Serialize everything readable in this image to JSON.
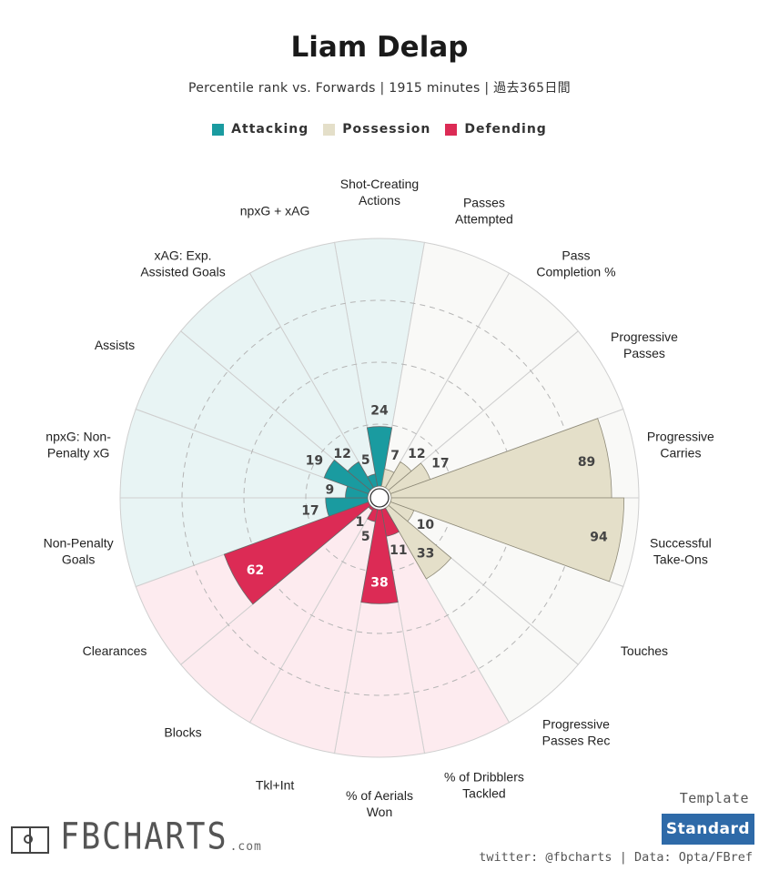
{
  "title": "Liam Delap",
  "subtitle": "Percentile rank vs. Forwards | 1915 minutes | 過去365日間",
  "legend": [
    {
      "label": "Attacking",
      "color": "#1a9ba0"
    },
    {
      "label": "Possession",
      "color": "#e4dfc9"
    },
    {
      "label": "Defending",
      "color": "#dc2b55"
    }
  ],
  "colors": {
    "attacking_bg": "#e8f4f4",
    "possession_bg": "#f9f9f7",
    "defending_bg": "#fdebef",
    "attacking_bar": "#1a9ba0",
    "possession_bar": "#e4dfc9",
    "defending_bar": "#dc2b55",
    "template_button": "#2e6aa8"
  },
  "chart_data": {
    "type": "polar-bar",
    "title": "Liam Delap",
    "value_range": [
      0,
      100
    ],
    "gridline_values": [
      25,
      50,
      75
    ],
    "metrics": [
      {
        "label": "Shot-Creating\nActions",
        "category": "Attacking",
        "value": 24
      },
      {
        "label": "Passes\nAttempted",
        "category": "Possession",
        "value": 7
      },
      {
        "label": "Pass\nCompletion %",
        "category": "Possession",
        "value": 12
      },
      {
        "label": "Progressive\nPasses",
        "category": "Possession",
        "value": 17
      },
      {
        "label": "Progressive\nCarries",
        "category": "Possession",
        "value": 89
      },
      {
        "label": "Successful\nTake-Ons",
        "category": "Possession",
        "value": 94
      },
      {
        "label": "Touches",
        "category": "Possession",
        "value": 10
      },
      {
        "label": "Progressive\nPasses Rec",
        "category": "Possession",
        "value": 33
      },
      {
        "label": "% of Dribblers\nTackled",
        "category": "Defending",
        "value": 11
      },
      {
        "label": "% of Aerials\nWon",
        "category": "Defending",
        "value": 38
      },
      {
        "label": "Tkl+Int",
        "category": "Defending",
        "value": 5
      },
      {
        "label": "Blocks",
        "category": "Defending",
        "value": 1
      },
      {
        "label": "Clearances",
        "category": "Defending",
        "value": 62
      },
      {
        "label": "Non-Penalty\nGoals",
        "category": "Attacking",
        "value": 17
      },
      {
        "label": "npxG: Non-\nPenalty xG",
        "category": "Attacking",
        "value": 9
      },
      {
        "label": "Assists",
        "category": "Attacking",
        "value": 19
      },
      {
        "label": "xAG: Exp.\nAssisted Goals",
        "category": "Attacking",
        "value": 12
      },
      {
        "label": "npxG + xAG",
        "category": "Attacking",
        "value": 5
      }
    ]
  },
  "footer": {
    "template_label": "Template",
    "template_value": "Standard",
    "credit": "twitter: @fbcharts | Data: Opta/FBref",
    "logo_text": "FBCHARTS",
    "logo_suffix": ".com"
  }
}
